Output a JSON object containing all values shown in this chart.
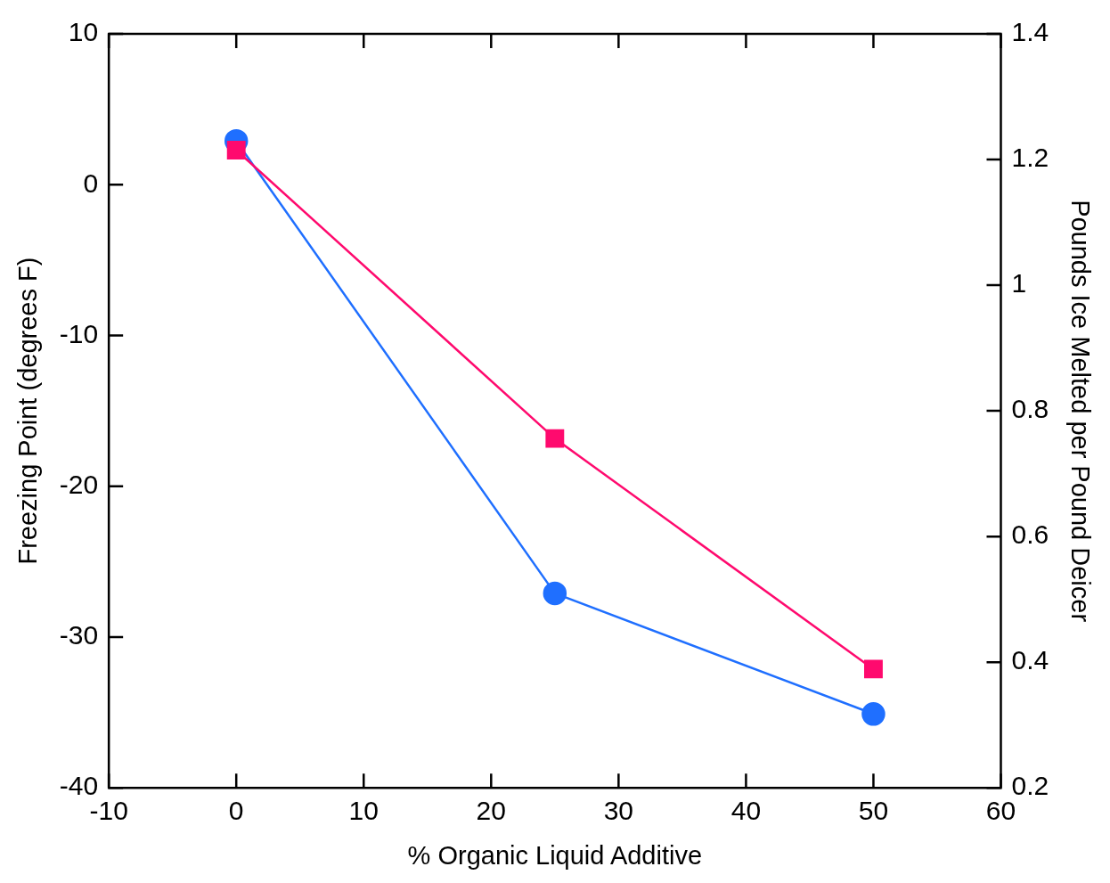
{
  "chart_data": {
    "type": "line",
    "xlabel": "% Organic Liquid Additive",
    "ylabel": "Freezing Point (degrees F)",
    "y2label": "Pounds Ice Melted per Pound Deicer",
    "x": [
      0,
      25,
      50
    ],
    "series": [
      {
        "color": "#1f6fff",
        "values": [
          2.9,
          -27.1,
          -35.1
        ],
        "marker": "circle"
      },
      {
        "color": "#ff0a6e",
        "values": [
          1.215,
          0.756,
          0.389
        ],
        "axis": "y2",
        "marker": "square"
      }
    ],
    "xlim": [
      -10,
      60
    ],
    "xticks": [
      -10,
      0,
      10,
      20,
      30,
      40,
      50,
      60
    ],
    "ylim": [
      -40,
      10
    ],
    "yticks": [
      -40,
      -30,
      -20,
      -10,
      0,
      10
    ],
    "y2lim": [
      0.2,
      1.4
    ],
    "y2ticks": [
      0.2,
      0.4,
      0.6,
      0.8,
      1,
      1.2,
      1.4
    ],
    "grid": false,
    "legend": false,
    "line_style": "solid"
  }
}
